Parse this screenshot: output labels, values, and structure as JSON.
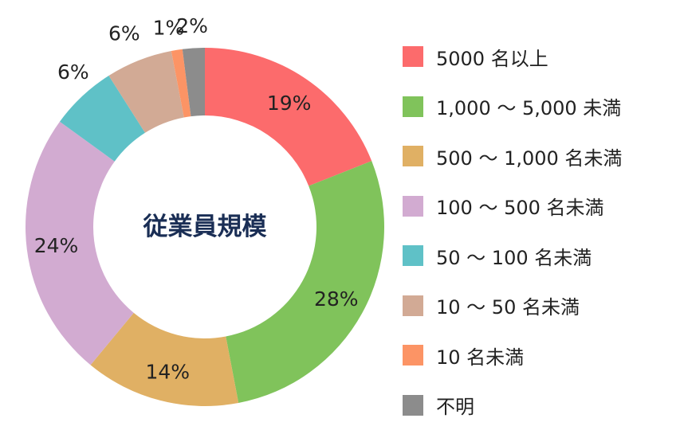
{
  "chart_data": {
    "type": "pie",
    "donut": true,
    "center_label": "従業員規模",
    "legend_position": "right",
    "categories": [
      "5000 名以上",
      "1,000 〜 5,000 未満",
      "500 〜 1,000 名未満",
      "100 〜 500 名未満",
      "50 〜 100 名未満",
      "10 〜 50 名未満",
      "10 名未満",
      "不明"
    ],
    "values": [
      19,
      28,
      14,
      24,
      6,
      6,
      1,
      2
    ],
    "value_labels": [
      "19%",
      "28%",
      "14%",
      "24%",
      "6%",
      "6%",
      "1%",
      "2%"
    ],
    "colors": [
      "#fc6b6c",
      "#80c35b",
      "#e0b064",
      "#d2abd1",
      "#5fc1c7",
      "#d2aa95",
      "#fc9465",
      "#8c8c8c"
    ]
  }
}
